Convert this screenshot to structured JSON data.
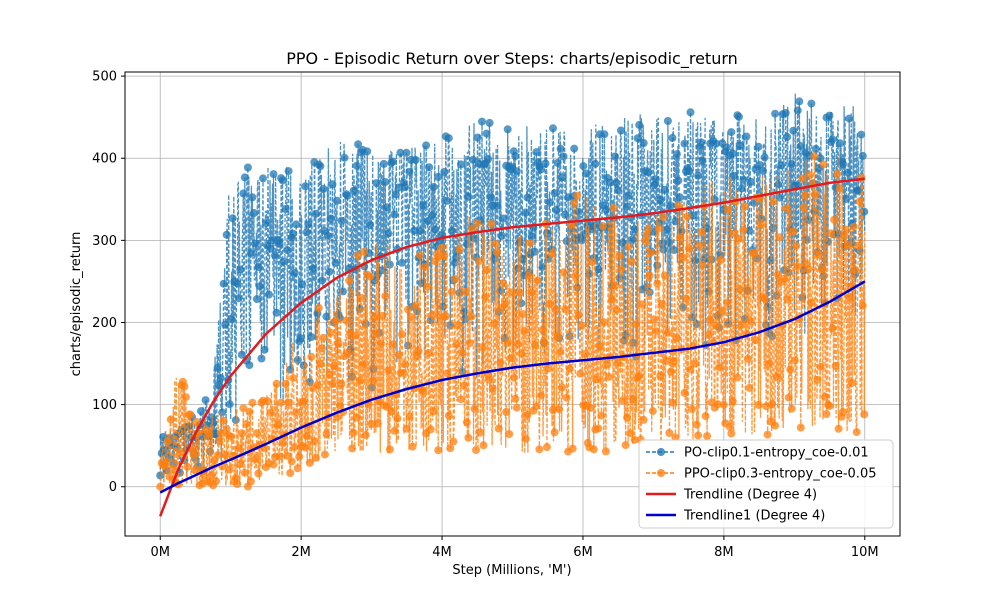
{
  "chart_data": {
    "type": "line",
    "title": "PPO - Episodic Return over Steps: charts/episodic_return",
    "xlabel": "Step (Millions, 'M')",
    "ylabel": "charts/episodic_return",
    "xlim": [
      -0.5,
      10.5
    ],
    "ylim": [
      -60,
      505
    ],
    "x_ticks": [
      0,
      2,
      4,
      6,
      8,
      10
    ],
    "x_tick_labels": [
      "0M",
      "2M",
      "4M",
      "6M",
      "8M",
      "10M"
    ],
    "y_ticks": [
      0,
      100,
      200,
      300,
      400,
      500
    ],
    "y_tick_labels": [
      "0",
      "100",
      "200",
      "300",
      "400",
      "500"
    ],
    "grid": true,
    "legend_position": "lower-right",
    "colors": {
      "series_blue": "#1f77b4",
      "series_orange": "#ff7f0e",
      "trend_red": "#e41a1c",
      "trend_blue": "#0000cc"
    },
    "series": [
      {
        "name": "PO-clip0.1-entropy_coe-0.01",
        "style": "dashed-markers",
        "color": "#1f77b4",
        "x": [
          0.0,
          0.25,
          0.5,
          0.75,
          1.0,
          1.25,
          1.5,
          2.0,
          2.5,
          3.0,
          3.5,
          4.0,
          4.5,
          5.0,
          5.5,
          6.0,
          6.5,
          7.0,
          7.5,
          8.0,
          8.5,
          9.0,
          9.5,
          10.0
        ],
        "y_low": [
          0,
          0,
          5,
          10,
          30,
          90,
          100,
          100,
          100,
          110,
          120,
          120,
          130,
          130,
          140,
          150,
          150,
          160,
          160,
          160,
          170,
          170,
          180,
          180
        ],
        "y_high": [
          70,
          70,
          90,
          130,
          390,
          390,
          390,
          390,
          420,
          420,
          410,
          430,
          450,
          440,
          440,
          440,
          450,
          460,
          460,
          460,
          450,
          480,
          460,
          470
        ]
      },
      {
        "name": "PPO-clip0.3-entropy_coe-0.05",
        "style": "dashed-markers",
        "color": "#ff7f0e",
        "x": [
          0.0,
          0.25,
          0.5,
          0.75,
          1.0,
          1.25,
          1.5,
          2.0,
          2.5,
          3.0,
          3.5,
          4.0,
          4.5,
          5.0,
          5.5,
          6.0,
          6.5,
          7.0,
          7.5,
          8.0,
          8.5,
          9.0,
          9.5,
          10.0
        ],
        "y_low": [
          0,
          0,
          0,
          0,
          0,
          0,
          5,
          20,
          40,
          40,
          40,
          40,
          40,
          40,
          40,
          40,
          40,
          50,
          50,
          60,
          60,
          70,
          70,
          60
        ],
        "y_high": [
          40,
          150,
          80,
          100,
          90,
          110,
          110,
          200,
          250,
          310,
          290,
          310,
          340,
          310,
          330,
          360,
          350,
          350,
          370,
          380,
          380,
          390,
          420,
          400
        ]
      },
      {
        "name": "Trendline (Degree 4)",
        "style": "solid",
        "color": "#e41a1c",
        "x": [
          0.0,
          0.25,
          0.5,
          0.75,
          1.0,
          1.5,
          2.0,
          2.5,
          3.0,
          3.5,
          4.0,
          4.5,
          5.0,
          5.5,
          6.0,
          6.5,
          7.0,
          7.5,
          8.0,
          8.5,
          9.0,
          9.5,
          10.0
        ],
        "y": [
          -36,
          20,
          65,
          103,
          135,
          186,
          224,
          254,
          276,
          292,
          303,
          310,
          316,
          320,
          324,
          328,
          333,
          339,
          346,
          354,
          362,
          370,
          375
        ]
      },
      {
        "name": "Trendline1 (Degree 4)",
        "style": "solid",
        "color": "#0000cc",
        "x": [
          0.0,
          0.25,
          0.5,
          0.75,
          1.0,
          1.5,
          2.0,
          2.5,
          3.0,
          3.5,
          4.0,
          4.5,
          5.0,
          5.5,
          6.0,
          6.5,
          7.0,
          7.5,
          8.0,
          8.5,
          9.0,
          9.5,
          10.0
        ],
        "y": [
          -7,
          4,
          14,
          24,
          33,
          52,
          72,
          90,
          106,
          119,
          130,
          138,
          145,
          150,
          154,
          158,
          163,
          168,
          176,
          188,
          204,
          225,
          250
        ]
      }
    ]
  }
}
